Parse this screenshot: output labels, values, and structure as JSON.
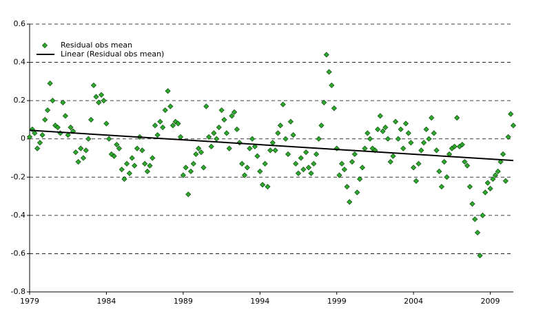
{
  "chart_data": {
    "type": "scatter",
    "series": [
      {
        "name": "Residual obs mean",
        "color": "#2ea82e",
        "x": [
          1979,
          1979.17,
          1979.33,
          1979.5,
          1979.67,
          1979.83,
          1980,
          1980.17,
          1980.33,
          1980.5,
          1980.67,
          1980.83,
          1981,
          1981.17,
          1981.33,
          1981.5,
          1981.67,
          1981.83,
          1982,
          1982.17,
          1982.33,
          1982.5,
          1982.67,
          1982.83,
          1983,
          1983.17,
          1983.33,
          1983.5,
          1983.67,
          1983.83,
          1984,
          1984.17,
          1984.33,
          1984.5,
          1984.67,
          1984.83,
          1985,
          1985.17,
          1985.33,
          1985.5,
          1985.67,
          1985.83,
          1986,
          1986.17,
          1986.33,
          1986.5,
          1986.67,
          1986.83,
          1987,
          1987.17,
          1987.33,
          1987.5,
          1987.67,
          1987.83,
          1988,
          1988.17,
          1988.33,
          1988.5,
          1988.67,
          1988.83,
          1989,
          1989.17,
          1989.33,
          1989.5,
          1989.67,
          1989.83,
          1990,
          1990.17,
          1990.33,
          1990.5,
          1990.67,
          1990.83,
          1991,
          1991.17,
          1991.33,
          1991.5,
          1991.67,
          1991.83,
          1992,
          1992.17,
          1992.33,
          1992.5,
          1992.67,
          1992.83,
          1993,
          1993.17,
          1993.33,
          1993.5,
          1993.67,
          1993.83,
          1994,
          1994.17,
          1994.33,
          1994.5,
          1994.67,
          1994.83,
          1995,
          1995.17,
          1995.33,
          1995.5,
          1995.67,
          1995.83,
          1996,
          1996.17,
          1996.33,
          1996.5,
          1996.67,
          1996.83,
          1997,
          1997.17,
          1997.33,
          1997.5,
          1997.67,
          1997.83,
          1998,
          1998.17,
          1998.33,
          1998.5,
          1998.67,
          1998.83,
          1999,
          1999.17,
          1999.33,
          1999.5,
          1999.67,
          1999.83,
          2000,
          2000.17,
          2000.33,
          2000.5,
          2000.67,
          2000.83,
          2001,
          2001.17,
          2001.33,
          2001.5,
          2001.67,
          2001.83,
          2002,
          2002.17,
          2002.33,
          2002.5,
          2002.67,
          2002.83,
          2003,
          2003.17,
          2003.33,
          2003.5,
          2003.67,
          2003.83,
          2004,
          2004.17,
          2004.33,
          2004.5,
          2004.67,
          2004.83,
          2005,
          2005.17,
          2005.33,
          2005.5,
          2005.67,
          2005.83,
          2006,
          2006.17,
          2006.33,
          2006.5,
          2006.67,
          2006.83,
          2007,
          2007.17,
          2007.33,
          2007.5,
          2007.67,
          2007.83,
          2008,
          2008.17,
          2008.33,
          2008.5,
          2008.67,
          2008.83,
          2009,
          2009.17,
          2009.33,
          2009.5,
          2009.67,
          2009.83,
          2010,
          2010.17,
          2010.33,
          2010.5
        ],
        "values": [
          0.01,
          0.05,
          0.03,
          -0.05,
          -0.02,
          0.02,
          0.1,
          0.15,
          0.29,
          0.2,
          0.07,
          0.06,
          0.03,
          0.19,
          0.12,
          0.02,
          0.06,
          0.04,
          -0.07,
          -0.12,
          -0.05,
          -0.1,
          -0.06,
          0,
          0.1,
          0.28,
          0.22,
          0.19,
          0.23,
          0.2,
          0.08,
          0,
          -0.08,
          -0.09,
          -0.03,
          -0.05,
          -0.16,
          -0.21,
          -0.13,
          -0.18,
          -0.1,
          -0.14,
          -0.05,
          0.01,
          -0.06,
          -0.13,
          -0.17,
          -0.14,
          -0.1,
          0.07,
          0.02,
          0.09,
          0.06,
          0.15,
          0.25,
          0.17,
          0.07,
          0.09,
          0.08,
          0.01,
          -0.19,
          -0.15,
          -0.29,
          -0.17,
          -0.13,
          -0.08,
          -0.05,
          -0.07,
          -0.15,
          0.17,
          0.01,
          -0.04,
          0.03,
          0,
          0.06,
          0.15,
          0.1,
          0.03,
          -0.05,
          0.12,
          0.14,
          0.05,
          -0.02,
          -0.13,
          -0.19,
          -0.15,
          -0.05,
          0,
          -0.04,
          -0.09,
          -0.17,
          -0.24,
          -0.13,
          -0.25,
          -0.06,
          -0.02,
          -0.06,
          0.03,
          0.07,
          0.18,
          0,
          -0.08,
          0.09,
          0.02,
          -0.13,
          -0.18,
          -0.1,
          -0.16,
          -0.07,
          -0.15,
          -0.18,
          -0.13,
          -0.08,
          0,
          0.07,
          0.19,
          0.44,
          0.35,
          0.28,
          0.16,
          -0.05,
          -0.19,
          -0.13,
          -0.16,
          -0.25,
          -0.33,
          -0.12,
          -0.08,
          -0.28,
          -0.21,
          -0.15,
          -0.05,
          0.03,
          0,
          -0.05,
          -0.06,
          0.05,
          0.12,
          0.04,
          0.06,
          0,
          -0.12,
          -0.09,
          0.09,
          0,
          0.05,
          -0.05,
          0.08,
          0.03,
          -0.02,
          -0.15,
          -0.22,
          -0.13,
          -0.06,
          -0.02,
          0.05,
          0,
          0.11,
          0.03,
          -0.06,
          -0.17,
          -0.25,
          -0.12,
          -0.2,
          -0.08,
          -0.05,
          -0.04,
          0.11,
          -0.04,
          -0.03,
          -0.12,
          -0.14,
          -0.25,
          -0.34,
          -0.42,
          -0.49,
          -0.61,
          -0.4,
          -0.28,
          -0.23,
          -0.26,
          -0.21,
          -0.19,
          -0.17,
          -0.12,
          -0.08,
          -0.22,
          0.01,
          0.13,
          0.07
        ]
      }
    ],
    "trend": {
      "name": "Linear (Residual obs mean)",
      "color": "#000000",
      "x": [
        1979,
        2010.5
      ],
      "values": [
        0.045,
        -0.113
      ]
    },
    "xlim": [
      1979,
      2010.5
    ],
    "xticks": [
      1979,
      1984,
      1989,
      1994,
      1999,
      2004,
      2009
    ],
    "ylim": [
      -0.8,
      0.6
    ],
    "yticks": [
      -0.8,
      -0.6,
      -0.4,
      -0.2,
      0,
      0.2,
      0.4,
      0.6
    ],
    "grid": true,
    "legend": "top-left"
  }
}
